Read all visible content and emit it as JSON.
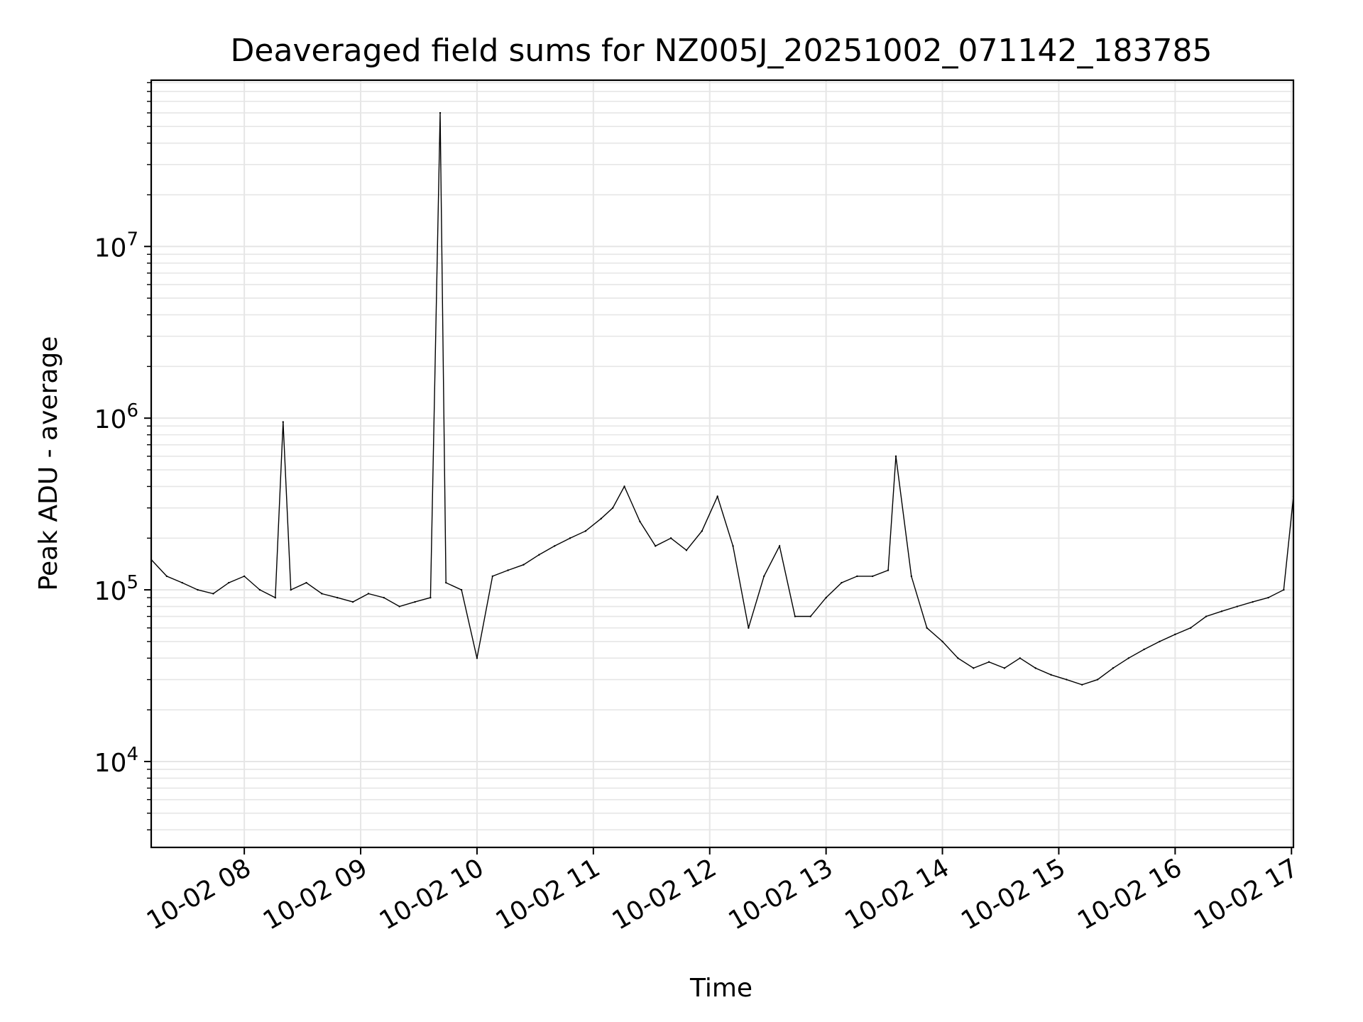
{
  "chart_data": {
    "type": "line",
    "title": "Deaveraged field sums for NZ005J_20251002_071142_183785",
    "xlabel": "Time",
    "ylabel": "Peak ADU - average",
    "xscale": "time",
    "yscale": "log",
    "xlim": [
      "2025-10-02 07:12",
      "2025-10-02 17:01"
    ],
    "ylim": [
      3160,
      93000000
    ],
    "grid": "on (major and minor)",
    "line_color": "#000000",
    "grid_color": "#e6e6e6",
    "x_ticks": [
      {
        "value": "2025-10-02 08:00",
        "label": "10-02 08"
      },
      {
        "value": "2025-10-02 09:00",
        "label": "10-02 09"
      },
      {
        "value": "2025-10-02 10:00",
        "label": "10-02 10"
      },
      {
        "value": "2025-10-02 11:00",
        "label": "10-02 11"
      },
      {
        "value": "2025-10-02 12:00",
        "label": "10-02 12"
      },
      {
        "value": "2025-10-02 13:00",
        "label": "10-02 13"
      },
      {
        "value": "2025-10-02 14:00",
        "label": "10-02 14"
      },
      {
        "value": "2025-10-02 15:00",
        "label": "10-02 15"
      },
      {
        "value": "2025-10-02 16:00",
        "label": "10-02 16"
      },
      {
        "value": "2025-10-02 17:00",
        "label": "10-02 17"
      }
    ],
    "y_ticks": [
      {
        "value": 10000,
        "base": "10",
        "exp": "4"
      },
      {
        "value": 100000,
        "base": "10",
        "exp": "5"
      },
      {
        "value": 1000000,
        "base": "10",
        "exp": "6"
      },
      {
        "value": 10000000,
        "base": "10",
        "exp": "7"
      }
    ],
    "series": [
      {
        "x": [
          "2025-10-02 07:12",
          "2025-10-02 07:20",
          "2025-10-02 07:28",
          "2025-10-02 07:36",
          "2025-10-02 07:44",
          "2025-10-02 07:52",
          "2025-10-02 08:00",
          "2025-10-02 08:08",
          "2025-10-02 08:16",
          "2025-10-02 08:20",
          "2025-10-02 08:24",
          "2025-10-02 08:32",
          "2025-10-02 08:40",
          "2025-10-02 08:48",
          "2025-10-02 08:56",
          "2025-10-02 09:04",
          "2025-10-02 09:12",
          "2025-10-02 09:20",
          "2025-10-02 09:28",
          "2025-10-02 09:36",
          "2025-10-02 09:41",
          "2025-10-02 09:44",
          "2025-10-02 09:52",
          "2025-10-02 10:00",
          "2025-10-02 10:08",
          "2025-10-02 10:16",
          "2025-10-02 10:24",
          "2025-10-02 10:32",
          "2025-10-02 10:40",
          "2025-10-02 10:48",
          "2025-10-02 10:56",
          "2025-10-02 11:04",
          "2025-10-02 11:10",
          "2025-10-02 11:16",
          "2025-10-02 11:24",
          "2025-10-02 11:32",
          "2025-10-02 11:40",
          "2025-10-02 11:48",
          "2025-10-02 11:56",
          "2025-10-02 12:04",
          "2025-10-02 12:12",
          "2025-10-02 12:20",
          "2025-10-02 12:28",
          "2025-10-02 12:36",
          "2025-10-02 12:44",
          "2025-10-02 12:52",
          "2025-10-02 13:00",
          "2025-10-02 13:08",
          "2025-10-02 13:16",
          "2025-10-02 13:24",
          "2025-10-02 13:32",
          "2025-10-02 13:36",
          "2025-10-02 13:44",
          "2025-10-02 13:52",
          "2025-10-02 14:00",
          "2025-10-02 14:08",
          "2025-10-02 14:16",
          "2025-10-02 14:24",
          "2025-10-02 14:32",
          "2025-10-02 14:40",
          "2025-10-02 14:48",
          "2025-10-02 14:56",
          "2025-10-02 15:04",
          "2025-10-02 15:12",
          "2025-10-02 15:20",
          "2025-10-02 15:28",
          "2025-10-02 15:36",
          "2025-10-02 15:44",
          "2025-10-02 15:52",
          "2025-10-02 16:00",
          "2025-10-02 16:08",
          "2025-10-02 16:16",
          "2025-10-02 16:24",
          "2025-10-02 16:32",
          "2025-10-02 16:40",
          "2025-10-02 16:48",
          "2025-10-02 16:56",
          "2025-10-02 17:01"
        ],
        "y": [
          150000,
          120000,
          110000,
          100000,
          95000,
          110000,
          120000,
          100000,
          90000,
          950000,
          100000,
          110000,
          95000,
          90000,
          85000,
          95000,
          90000,
          80000,
          85000,
          90000,
          60000000,
          110000,
          100000,
          40000,
          120000,
          130000,
          140000,
          160000,
          180000,
          200000,
          220000,
          260000,
          300000,
          400000,
          250000,
          180000,
          200000,
          170000,
          220000,
          350000,
          180000,
          60000,
          120000,
          180000,
          70000,
          70000,
          90000,
          110000,
          120000,
          120000,
          130000,
          600000,
          120000,
          60000,
          50000,
          40000,
          35000,
          38000,
          35000,
          40000,
          35000,
          32000,
          30000,
          28000,
          30000,
          35000,
          40000,
          45000,
          50000,
          55000,
          60000,
          70000,
          75000,
          80000,
          85000,
          90000,
          100000,
          350000
        ]
      }
    ]
  }
}
